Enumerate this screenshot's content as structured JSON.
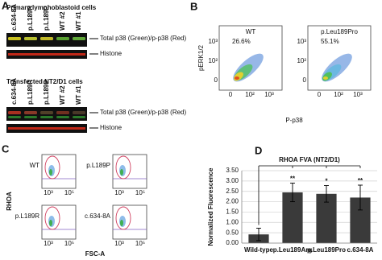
{
  "panels": {
    "A": {
      "letter": "A",
      "blots": [
        {
          "title": "Primary lymphoblastoid cells",
          "lanes": [
            "c.634-8A",
            "p.L189R",
            "p.L189P",
            "WT #2",
            "WT #1"
          ],
          "band_label": "Total p38 (Green)/p-p38 (Red)",
          "histone_label": "Histone"
        },
        {
          "title": "Transfected NT2/D1 cells",
          "lanes": [
            "c.634-8A",
            "p.L189R",
            "p.L189P",
            "WT #2",
            "WT #1"
          ],
          "band_label": "Total p38 (Green)/p-p38 (Red)",
          "histone_label": "Histone"
        }
      ]
    },
    "B": {
      "letter": "B",
      "y_label": "pERK1/2",
      "x_label": "P-p38",
      "axis_ticks": [
        "0",
        "10²",
        "10³"
      ],
      "plots": [
        {
          "name": "WT",
          "percent": "26.6%"
        },
        {
          "name": "p.Leu189Pro",
          "percent": "55.1%"
        }
      ]
    },
    "C": {
      "letter": "C",
      "y_label": "RHOA",
      "x_label": "FSC-A",
      "axis_ticks": [
        "10³",
        "10⁵"
      ],
      "plots": [
        "WT",
        "p.L189P",
        "p.L189R",
        "c.634-8A"
      ]
    }
  },
  "chart_data": {
    "type": "bar",
    "letter": "D",
    "title": "RHOA FVA (NT2/D1)",
    "y_label": "Normalized Fluorescence",
    "categories": [
      "Wild-type",
      "p.Leu189Arg",
      "p.Leu189Pro",
      "c.634-8A"
    ],
    "values": [
      0.42,
      2.45,
      2.38,
      2.2
    ],
    "errors": [
      0.3,
      0.45,
      0.4,
      0.6
    ],
    "significance": [
      null,
      "**",
      "*",
      "**"
    ],
    "color": "#3a3a3a",
    "error_color": "#000000",
    "ylim": [
      0,
      3.5
    ],
    "yticks": [
      {
        "value": 0,
        "label": "0.00"
      },
      {
        "value": 0.5,
        "label": "0.50"
      },
      {
        "value": 1,
        "label": "1.00"
      },
      {
        "value": 1.5,
        "label": "1.50"
      },
      {
        "value": 2,
        "label": "2.00"
      },
      {
        "value": 2.5,
        "label": "2.50"
      },
      {
        "value": 3,
        "label": "3.00"
      },
      {
        "value": 3.5,
        "label": "3.50"
      }
    ],
    "grid": true
  }
}
